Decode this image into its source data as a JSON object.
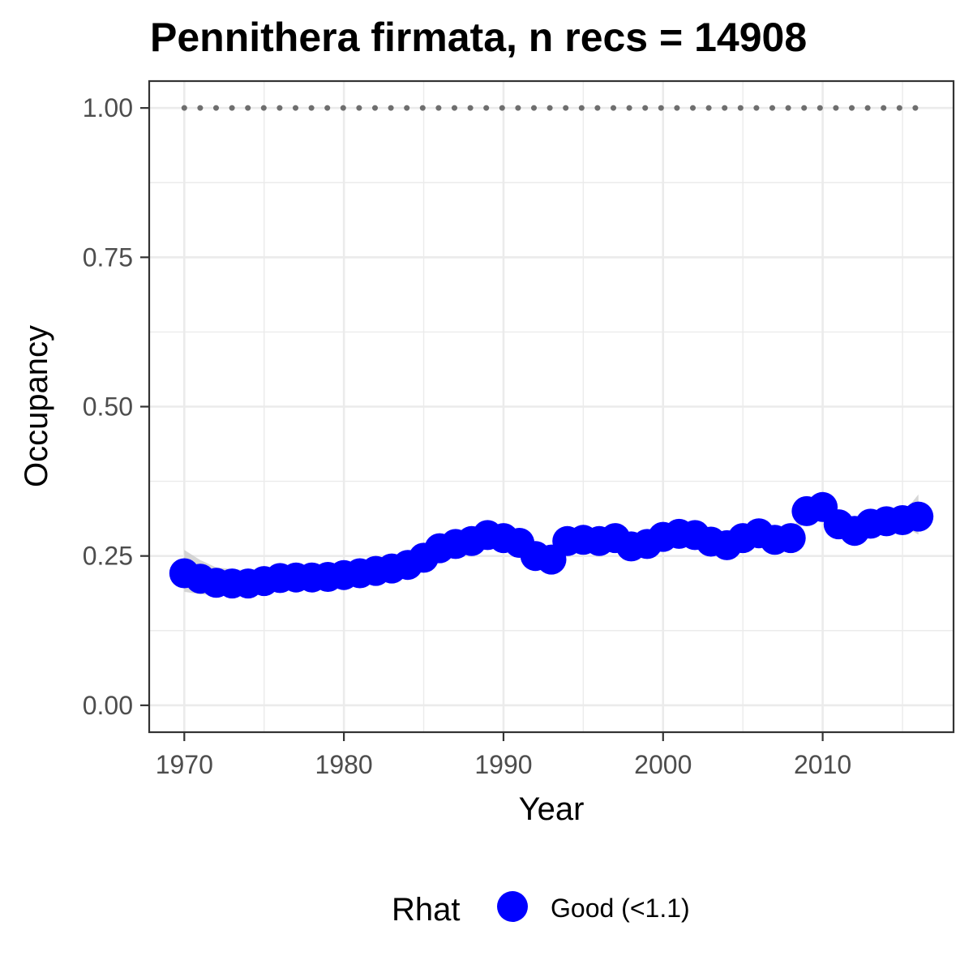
{
  "chart_data": {
    "type": "line",
    "title": "Pennithera firmata, n recs = 14908",
    "xlabel": "Year",
    "ylabel": "Occupancy",
    "xlim": [
      1967.8,
      2018.2
    ],
    "ylim": [
      -0.045,
      1.045
    ],
    "x_ticks": [
      1970,
      1980,
      1990,
      2000,
      2010
    ],
    "x_tick_labels": [
      "1970",
      "1980",
      "1990",
      "2000",
      "2010"
    ],
    "y_ticks": [
      0,
      0.25,
      0.5,
      0.75,
      1.0
    ],
    "y_tick_labels": [
      "0.00",
      "0.25",
      "0.50",
      "0.75",
      "1.00"
    ],
    "grid": true,
    "legend": {
      "title": "Rhat",
      "placement": "bottom",
      "entries": [
        {
          "label": "Good (<1.1)",
          "color": "#0000ff"
        }
      ]
    },
    "colors": {
      "points": "#0000ff",
      "ribbon": "#c8c8c8",
      "reference_line": "#6e6e6e",
      "grid": "#ebebeb",
      "panel_border": "#333333"
    },
    "reference_line": {
      "y": 1.0,
      "x_start": 1970,
      "x_end": 2016,
      "style": "dotted"
    },
    "series": [
      {
        "x": [
          1970,
          1971,
          1972,
          1973,
          1974,
          1975,
          1976,
          1977,
          1978,
          1979,
          1980,
          1981,
          1982,
          1983,
          1984,
          1985,
          1986,
          1987,
          1988,
          1989,
          1990,
          1991,
          1992,
          1993,
          1994,
          1995,
          1996,
          1997,
          1998,
          1999,
          2000,
          2001,
          2002,
          2003,
          2004,
          2005,
          2006,
          2007,
          2008,
          2009,
          2010,
          2011,
          2012,
          2013,
          2014,
          2015,
          2016
        ],
        "values": [
          0.221,
          0.212,
          0.205,
          0.204,
          0.204,
          0.208,
          0.213,
          0.214,
          0.214,
          0.215,
          0.218,
          0.221,
          0.225,
          0.229,
          0.235,
          0.247,
          0.263,
          0.27,
          0.275,
          0.285,
          0.28,
          0.272,
          0.25,
          0.244,
          0.275,
          0.277,
          0.275,
          0.28,
          0.266,
          0.27,
          0.282,
          0.287,
          0.285,
          0.274,
          0.268,
          0.28,
          0.288,
          0.277,
          0.28,
          0.325,
          0.332,
          0.303,
          0.292,
          0.304,
          0.308,
          0.31,
          0.316
        ],
        "lower": [
          0.19,
          0.186,
          0.184,
          0.184,
          0.185,
          0.19,
          0.195,
          0.198,
          0.2,
          0.202,
          0.205,
          0.209,
          0.213,
          0.218,
          0.224,
          0.236,
          0.252,
          0.26,
          0.265,
          0.275,
          0.27,
          0.262,
          0.24,
          0.234,
          0.265,
          0.267,
          0.265,
          0.27,
          0.256,
          0.26,
          0.272,
          0.277,
          0.275,
          0.264,
          0.258,
          0.27,
          0.278,
          0.267,
          0.27,
          0.315,
          0.322,
          0.293,
          0.282,
          0.294,
          0.298,
          0.3,
          0.286
        ],
        "upper": [
          0.26,
          0.243,
          0.231,
          0.228,
          0.226,
          0.228,
          0.232,
          0.232,
          0.23,
          0.231,
          0.233,
          0.236,
          0.239,
          0.243,
          0.248,
          0.258,
          0.274,
          0.281,
          0.287,
          0.297,
          0.29,
          0.282,
          0.26,
          0.254,
          0.285,
          0.287,
          0.285,
          0.29,
          0.276,
          0.28,
          0.292,
          0.297,
          0.295,
          0.284,
          0.278,
          0.29,
          0.298,
          0.287,
          0.29,
          0.335,
          0.342,
          0.313,
          0.302,
          0.314,
          0.318,
          0.32,
          0.353
        ]
      }
    ]
  }
}
